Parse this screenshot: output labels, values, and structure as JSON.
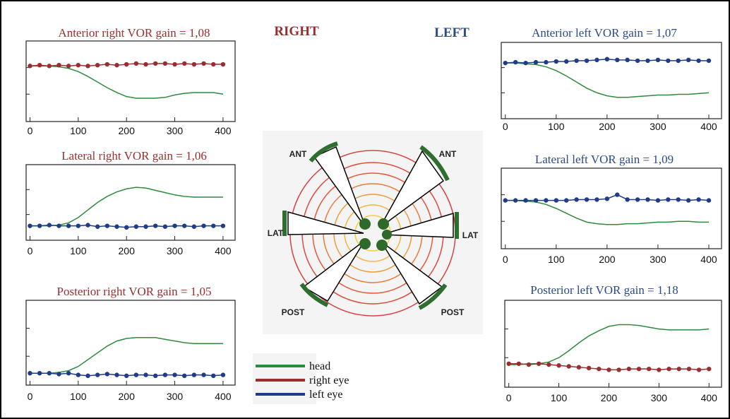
{
  "chart_data": [
    {
      "type": "line",
      "title": "Anterior right VOR gain = 1,08",
      "title_color": "#9b2d30",
      "xlim": [
        -8,
        425
      ],
      "xticks": [
        0,
        100,
        200,
        300,
        400
      ],
      "ylim": [
        0,
        100
      ],
      "x": [
        0,
        20,
        40,
        60,
        80,
        100,
        120,
        140,
        160,
        180,
        200,
        220,
        240,
        260,
        280,
        300,
        320,
        340,
        360,
        380,
        400
      ],
      "series": [
        {
          "color": "#2e8b3e",
          "values": [
            69,
            69,
            69,
            68,
            66,
            62,
            56,
            49,
            42,
            36,
            31,
            29,
            29,
            29,
            30,
            33,
            35,
            36,
            36,
            36,
            34
          ]
        },
        {
          "color": "#9b2d30",
          "markers": true,
          "values": [
            69,
            70,
            69,
            70,
            69,
            70,
            69,
            70,
            71,
            70,
            71,
            72,
            71,
            72,
            72,
            71,
            72,
            71,
            72,
            71,
            71
          ]
        }
      ]
    },
    {
      "type": "line",
      "title": "Lateral right VOR gain = 1,06",
      "title_color": "#9b2d30",
      "xlim": [
        -8,
        425
      ],
      "xticks": [
        0,
        100,
        200,
        300,
        400
      ],
      "ylim": [
        0,
        100
      ],
      "x": [
        0,
        20,
        40,
        60,
        80,
        100,
        120,
        140,
        160,
        180,
        200,
        220,
        240,
        260,
        280,
        300,
        320,
        340,
        360,
        380,
        400
      ],
      "series": [
        {
          "color": "#2e8b3e",
          "values": [
            19,
            19,
            19,
            20,
            23,
            30,
            40,
            50,
            58,
            64,
            68,
            70,
            69,
            66,
            63,
            60,
            58,
            57,
            57,
            57,
            57
          ]
        },
        {
          "color": "#1f3c88",
          "markers": true,
          "values": [
            19,
            19,
            20,
            19,
            19,
            19,
            20,
            18,
            19,
            18,
            17,
            18,
            18,
            19,
            18,
            19,
            19,
            18,
            19,
            19,
            19
          ]
        }
      ]
    },
    {
      "type": "line",
      "title": "Posterior right VOR gain = 1,05",
      "title_color": "#9b2d30",
      "xlim": [
        -8,
        425
      ],
      "xticks": [
        0,
        100,
        200,
        300,
        400
      ],
      "ylim": [
        0,
        100
      ],
      "x": [
        0,
        20,
        40,
        60,
        80,
        100,
        120,
        140,
        160,
        180,
        200,
        220,
        240,
        260,
        280,
        300,
        320,
        340,
        360,
        380,
        400
      ],
      "series": [
        {
          "color": "#2e8b3e",
          "values": [
            14,
            14,
            14,
            15,
            17,
            22,
            30,
            38,
            46,
            52,
            55,
            56,
            56,
            56,
            54,
            52,
            50,
            49,
            49,
            49,
            49
          ]
        },
        {
          "color": "#1f3c88",
          "markers": true,
          "values": [
            14,
            14,
            14,
            13,
            14,
            12,
            11,
            12,
            13,
            12,
            11,
            12,
            12,
            11,
            12,
            12,
            11,
            12,
            12,
            11,
            12
          ]
        }
      ]
    },
    {
      "type": "line",
      "title": "Anterior left VOR gain = 1,07",
      "title_color": "#2a4a8a",
      "xlim": [
        -8,
        425
      ],
      "xticks": [
        0,
        100,
        200,
        300,
        400
      ],
      "ylim": [
        0,
        100
      ],
      "x": [
        0,
        20,
        40,
        60,
        80,
        100,
        120,
        140,
        160,
        180,
        200,
        220,
        240,
        260,
        280,
        300,
        320,
        340,
        360,
        380,
        400
      ],
      "series": [
        {
          "color": "#2e8b3e",
          "values": [
            73,
            73,
            72,
            71,
            68,
            63,
            56,
            48,
            40,
            34,
            30,
            28,
            28,
            29,
            30,
            31,
            31,
            32,
            32,
            33,
            34
          ]
        },
        {
          "color": "#1f3c88",
          "markers": true,
          "values": [
            73,
            74,
            73,
            74,
            74,
            75,
            75,
            76,
            76,
            77,
            78,
            77,
            77,
            76,
            76,
            77,
            76,
            76,
            77,
            76,
            76
          ]
        }
      ]
    },
    {
      "type": "line",
      "title": "Lateral left VOR gain = 1,09",
      "title_color": "#2a4a8a",
      "xlim": [
        -8,
        425
      ],
      "xticks": [
        0,
        100,
        200,
        300,
        400
      ],
      "ylim": [
        0,
        100
      ],
      "x": [
        0,
        20,
        40,
        60,
        80,
        100,
        120,
        140,
        160,
        180,
        200,
        220,
        240,
        260,
        280,
        300,
        320,
        340,
        360,
        380,
        400
      ],
      "series": [
        {
          "color": "#2e8b3e",
          "values": [
            60,
            60,
            59,
            58,
            55,
            50,
            44,
            38,
            33,
            31,
            30,
            30,
            31,
            31,
            32,
            33,
            33,
            34,
            34,
            33,
            33
          ]
        },
        {
          "color": "#1f3c88",
          "markers": true,
          "values": [
            60,
            60,
            60,
            60,
            60,
            60,
            60,
            61,
            61,
            61,
            62,
            67,
            61,
            61,
            61,
            60,
            61,
            61,
            60,
            61,
            60
          ]
        }
      ]
    },
    {
      "type": "line",
      "title": "Posterior left VOR gain = 1,18",
      "title_color": "#2a4a8a",
      "xlim": [
        -8,
        425
      ],
      "xticks": [
        0,
        100,
        200,
        300,
        400
      ],
      "ylim": [
        0,
        100
      ],
      "x": [
        0,
        20,
        40,
        60,
        80,
        100,
        120,
        140,
        160,
        180,
        200,
        220,
        240,
        260,
        280,
        300,
        320,
        340,
        360,
        380,
        400
      ],
      "series": [
        {
          "color": "#2e8b3e",
          "values": [
            26,
            26,
            27,
            27,
            29,
            34,
            42,
            51,
            59,
            65,
            70,
            72,
            72,
            71,
            69,
            67,
            66,
            66,
            66,
            66,
            67
          ]
        },
        {
          "color": "#9b2d30",
          "markers": true,
          "values": [
            27,
            27,
            26,
            27,
            26,
            25,
            24,
            23,
            22,
            21,
            20,
            20,
            21,
            21,
            21,
            20,
            21,
            21,
            21,
            20,
            21
          ]
        }
      ]
    }
  ],
  "side_labels": {
    "right": "RIGHT",
    "left": "LEFT"
  },
  "diagram": {
    "labels": [
      "ANT",
      "ANT",
      "LAT",
      "LAT",
      "POST",
      "POST"
    ]
  },
  "legend": [
    {
      "label": "head",
      "color": "#2e8b3e"
    },
    {
      "label": "right eye",
      "color": "#9b2d30"
    },
    {
      "label": "left eye",
      "color": "#1f3c88"
    }
  ]
}
